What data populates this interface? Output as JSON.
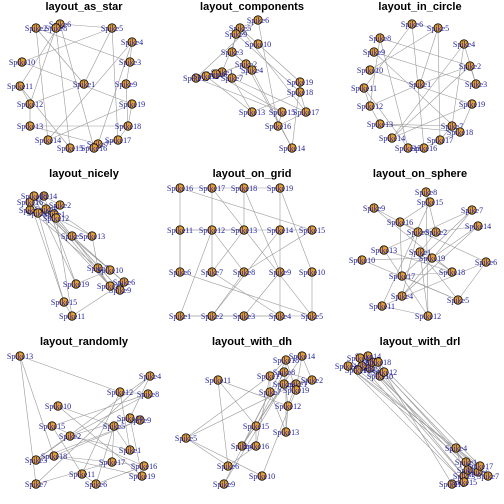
{
  "figure": {
    "panels": [
      {
        "id": "star",
        "title": "layout_as_star"
      },
      {
        "id": "components",
        "title": "layout_components"
      },
      {
        "id": "circle",
        "title": "layout_in_circle"
      },
      {
        "id": "nicely",
        "title": "layout_nicely"
      },
      {
        "id": "grid",
        "title": "layout_on_grid"
      },
      {
        "id": "sphere",
        "title": "layout_on_sphere"
      },
      {
        "id": "randomly",
        "title": "layout_randomly"
      },
      {
        "id": "dh",
        "title": "layout_with_dh"
      },
      {
        "id": "drl",
        "title": "layout_with_drl"
      }
    ],
    "node_labels": [
      "Spike1",
      "Spike2",
      "Spike3",
      "Spike4",
      "Spike5",
      "Spike6",
      "Spike7",
      "Spike8",
      "Spike9",
      "Spike10",
      "Spike11",
      "Spike12",
      "Spike13",
      "Spike14",
      "Spike15",
      "Spike16",
      "Spike17",
      "Spike18",
      "Spike19"
    ],
    "edges": [
      [
        1,
        2
      ],
      [
        1,
        5
      ],
      [
        1,
        12
      ],
      [
        2,
        3
      ],
      [
        2,
        8
      ],
      [
        3,
        4
      ],
      [
        3,
        9
      ],
      [
        4,
        7
      ],
      [
        4,
        14
      ],
      [
        5,
        6
      ],
      [
        5,
        10
      ],
      [
        6,
        11
      ],
      [
        6,
        16
      ],
      [
        7,
        13
      ],
      [
        7,
        17
      ],
      [
        8,
        12
      ],
      [
        8,
        15
      ],
      [
        9,
        18
      ],
      [
        10,
        19
      ],
      [
        11,
        12
      ],
      [
        11,
        15
      ],
      [
        12,
        13
      ],
      [
        13,
        18
      ],
      [
        14,
        19
      ],
      [
        15,
        16
      ],
      [
        16,
        17
      ],
      [
        17,
        18
      ],
      [
        18,
        19
      ],
      [
        2,
        14
      ],
      [
        5,
        17
      ]
    ],
    "colors": {
      "node_fill": "#e69f2a",
      "node_stroke": "#000000",
      "label": "#1c1c9c",
      "edge": "#9a9a9a"
    }
  }
}
